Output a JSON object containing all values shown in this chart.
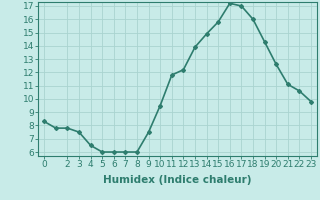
{
  "x": [
    0,
    1,
    2,
    3,
    4,
    5,
    6,
    7,
    8,
    9,
    10,
    11,
    12,
    13,
    14,
    15,
    16,
    17,
    18,
    19,
    20,
    21,
    22,
    23
  ],
  "y": [
    8.3,
    7.8,
    7.8,
    7.5,
    6.5,
    6.0,
    6.0,
    6.0,
    6.0,
    7.5,
    9.5,
    11.8,
    12.2,
    13.9,
    14.9,
    15.8,
    17.2,
    17.0,
    16.0,
    14.3,
    12.6,
    11.1,
    10.6,
    9.8
  ],
  "line_color": "#2e7d6e",
  "marker": "D",
  "marker_size": 2.0,
  "bg_color": "#c8ebe8",
  "grid_color": "#aad4d0",
  "xlabel": "Humidex (Indice chaleur)",
  "xlim_min": -0.5,
  "xlim_max": 23.5,
  "ylim_min": 5.7,
  "ylim_max": 17.3,
  "yticks": [
    6,
    7,
    8,
    9,
    10,
    11,
    12,
    13,
    14,
    15,
    16,
    17
  ],
  "xticks": [
    0,
    2,
    3,
    4,
    5,
    6,
    7,
    8,
    9,
    10,
    11,
    12,
    13,
    14,
    15,
    16,
    17,
    18,
    19,
    20,
    21,
    22,
    23
  ],
  "tick_fontsize": 6.5,
  "xlabel_fontsize": 7.5,
  "line_width": 1.2
}
